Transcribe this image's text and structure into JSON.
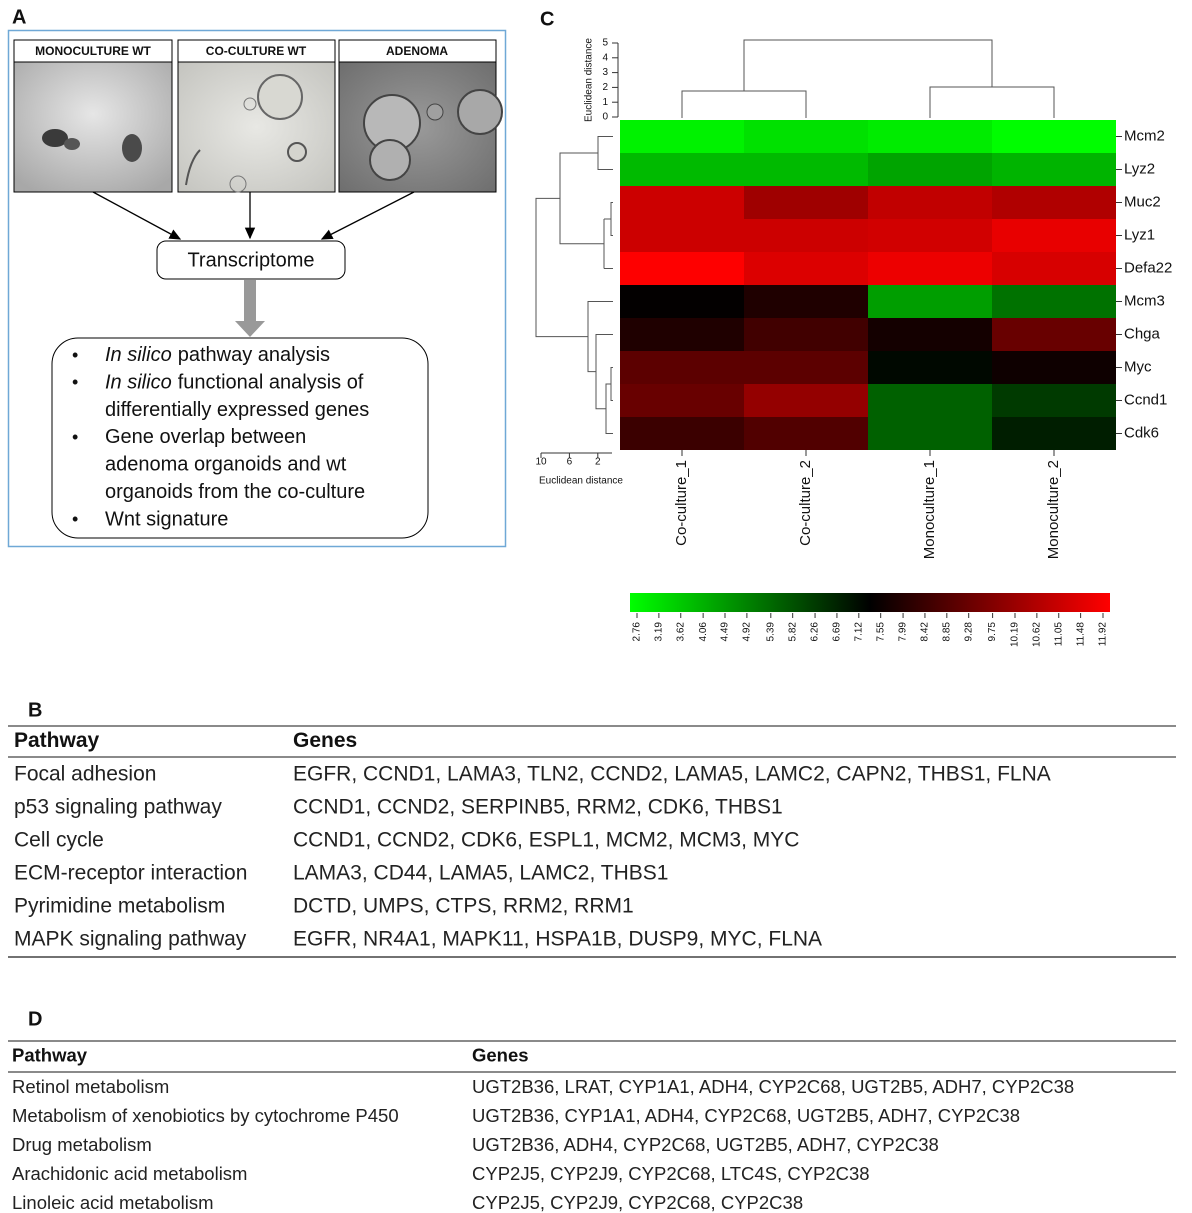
{
  "panel_labels": {
    "a": "A",
    "b": "B",
    "c": "C",
    "d": "D"
  },
  "panel_a": {
    "images": [
      "MONOCULTURE WT",
      "CO-CULTURE WT",
      "ADENOMA"
    ],
    "hub": "Transcriptome",
    "bullets": [
      {
        "italic": "In silico",
        "lines": [
          "pathway analysis"
        ]
      },
      {
        "italic": "In silico",
        "lines": [
          "functional analysis of",
          "differentially expressed genes"
        ]
      },
      {
        "lines": [
          "Gene overlap between",
          "adenoma organoids and wt",
          "organoids from the co-culture"
        ]
      },
      {
        "lines": [
          "Wnt signature"
        ]
      }
    ]
  },
  "chart_data": {
    "type": "heatmap",
    "rows": [
      "Mcm2",
      "Lyz2",
      "Muc2",
      "Lyz1",
      "Defa22",
      "Mcm3",
      "Chga",
      "Myc",
      "Ccnd1",
      "Cdk6"
    ],
    "columns": [
      "Co-culture_1",
      "Co-culture_2",
      "Monoculture_1",
      "Monoculture_2"
    ],
    "values": [
      [
        3.0,
        3.3,
        3.1,
        2.8
      ],
      [
        4.0,
        4.0,
        4.4,
        4.1
      ],
      [
        11.0,
        10.2,
        10.8,
        10.5
      ],
      [
        11.0,
        11.0,
        11.1,
        11.5
      ],
      [
        11.9,
        11.3,
        11.6,
        11.2
      ],
      [
        7.4,
        7.9,
        4.5,
        5.3
      ],
      [
        7.9,
        8.5,
        7.7,
        9.2
      ],
      [
        9.0,
        9.0,
        7.2,
        7.6
      ],
      [
        9.2,
        10.0,
        5.6,
        6.3
      ],
      [
        8.4,
        8.8,
        5.6,
        6.8
      ]
    ],
    "colormap": [
      "#00ff00",
      "#000000",
      "#ff0000"
    ],
    "zlim": [
      2.76,
      11.92
    ],
    "colorbar_ticks": [
      2.76,
      3.19,
      3.62,
      4.06,
      4.49,
      4.92,
      5.39,
      5.82,
      6.26,
      6.69,
      7.12,
      7.55,
      7.99,
      8.42,
      8.85,
      9.28,
      9.75,
      10.19,
      10.62,
      11.05,
      11.48,
      11.92
    ],
    "top_dendrogram": {
      "axis_label": "Euclidean distance",
      "ticks": [
        0,
        1,
        2,
        3,
        4,
        5
      ]
    },
    "left_dendrogram": {
      "axis_label": "Euclidean distance",
      "ticks": [
        10,
        6,
        2
      ]
    }
  },
  "panel_b": {
    "header": [
      "Pathway",
      "Genes"
    ],
    "rows": [
      [
        "Focal adhesion",
        "EGFR, CCND1, LAMA3, TLN2, CCND2, LAMA5, LAMC2, CAPN2, THBS1, FLNA"
      ],
      [
        "p53 signaling pathway",
        "CCND1, CCND2, SERPINB5, RRM2, CDK6, THBS1"
      ],
      [
        "Cell cycle",
        "CCND1, CCND2, CDK6, ESPL1, MCM2, MCM3, MYC"
      ],
      [
        "ECM-receptor interaction",
        "LAMA3, CD44, LAMA5, LAMC2, THBS1"
      ],
      [
        "Pyrimidine metabolism",
        "DCTD, UMPS, CTPS, RRM2, RRM1"
      ],
      [
        "MAPK signaling pathway",
        "EGFR, NR4A1, MAPK11, HSPA1B, DUSP9, MYC, FLNA"
      ]
    ]
  },
  "panel_d": {
    "header": [
      "Pathway",
      "Genes"
    ],
    "rows": [
      [
        "Retinol metabolism",
        "UGT2B36, LRAT, CYP1A1, ADH4, CYP2C68, UGT2B5, ADH7, CYP2C38"
      ],
      [
        "Metabolism of xenobiotics by cytochrome P450",
        "UGT2B36, CYP1A1, ADH4, CYP2C68, UGT2B5, ADH7, CYP2C38"
      ],
      [
        "Drug metabolism",
        "UGT2B36, ADH4, CYP2C68, UGT2B5, ADH7, CYP2C38"
      ],
      [
        "Arachidonic acid metabolism",
        "CYP2J5, CYP2J9, CYP2C68, LTC4S, CYP2C38"
      ],
      [
        "Linoleic acid metabolism",
        "CYP2J5, CYP2J9, CYP2C68, CYP2C38"
      ]
    ]
  }
}
